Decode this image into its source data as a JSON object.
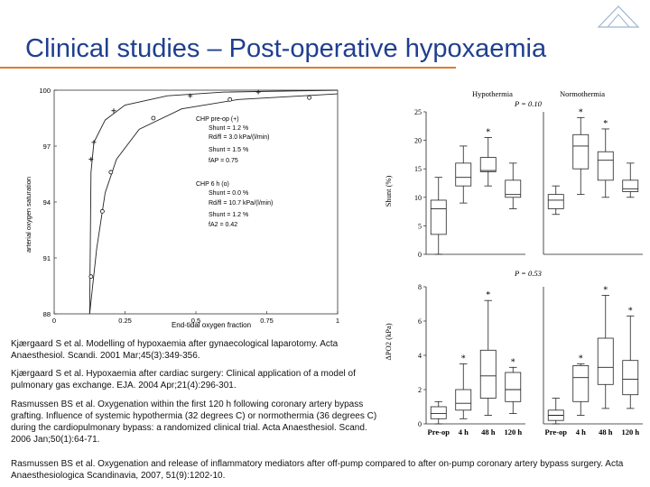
{
  "slide": {
    "title": "Clinical studies – Post-operative hypoxaemia"
  },
  "references": [
    "Kjærgaard S et al. Modelling of hypoxaemia after gynaecological laparotomy. Acta Anaesthesiol. Scandi. 2001 Mar;45(3):349-356.",
    "Kjærgaard S et al. Hypoxaemia after cardiac surgery: Clinical application of a model of pulmonary gas exchange. EJA. 2004 Apr;21(4):296-301.",
    "Rasmussen BS et al. Oxygenation within the first 120 h following coronary artery bypass grafting. Influence of systemic hypothermia (32 degrees C) or normothermia (36 degrees C) during the cardiopulmonary bypass: a randomized clinical trial. Acta Anaesthesiol. Scand. 2006 Jan;50(1):64-71.",
    "Rasmussen BS et al. Oxygenation and release of inflammatory mediators after off-pump compared to after on-pump coronary artery bypass surgery. Acta Anaesthesiologica Scandinavia, 2007, 51(9):1202-10."
  ],
  "chart_data": [
    {
      "type": "line",
      "xlabel": "End-tidal oxygen fraction",
      "ylabel": "arterial oxygen saturation",
      "xlim": [
        0,
        1
      ],
      "ylim": [
        88,
        100
      ],
      "x_ticks": [
        "0",
        "0.25",
        "0.5",
        "0.75",
        "1"
      ],
      "y_ticks": [
        "88",
        "91",
        "94",
        "97",
        "100"
      ],
      "legend": {
        "g1_title": "CHP pre-op (+)",
        "g1_lines": [
          "Shunt = 1.2 %",
          "Rd/fl = 3.0 kPa/(l/min)",
          "Shunt = 1.5 %",
          "fAP = 0.75"
        ],
        "g2_title": "CHP 6 h (o)",
        "g2_lines": [
          "Shunt = 0.0 %",
          "Rd/fl = 10.7 kPa/(l/min)",
          "Shunt = 1.2 %",
          "fA2 = 0.42"
        ]
      },
      "series": [
        {
          "marker": "+",
          "x": [
            0.13,
            0.14,
            0.21,
            0.48,
            0.72
          ],
          "y": [
            96.3,
            97.2,
            98.9,
            99.7,
            99.9
          ]
        },
        {
          "marker": "o",
          "x": [
            0.13,
            0.17,
            0.2,
            0.35,
            0.62,
            0.9
          ],
          "y": [
            90.0,
            93.5,
            95.6,
            98.5,
            99.5,
            99.6
          ]
        }
      ]
    },
    {
      "type": "box",
      "ylabel": "Shunt (%)",
      "p_value": "P = 0.10",
      "groups": [
        "Hypothermia",
        "Normothermia"
      ],
      "ylim": [
        0,
        25
      ],
      "y_ticks": [
        "0",
        "5",
        "10",
        "15",
        "20",
        "25"
      ],
      "boxes": [
        {
          "group": 0,
          "min": 0,
          "q1": 3.5,
          "median": 8,
          "q3": 9.5,
          "max": 13.5,
          "star": false
        },
        {
          "group": 0,
          "min": 9,
          "q1": 12,
          "median": 13.5,
          "q3": 16,
          "max": 19,
          "star": false
        },
        {
          "group": 0,
          "min": 12,
          "q1": 14.5,
          "median": 14.7,
          "q3": 17,
          "max": 20.5,
          "star": true
        },
        {
          "group": 0,
          "min": 8,
          "q1": 10,
          "median": 10.5,
          "q3": 13,
          "max": 16,
          "star": false
        },
        {
          "group": 1,
          "min": 7,
          "q1": 8,
          "median": 9.5,
          "q3": 10.5,
          "max": 12,
          "star": false
        },
        {
          "group": 1,
          "min": 10.5,
          "q1": 15,
          "median": 19,
          "q3": 21,
          "max": 24,
          "star": true
        },
        {
          "group": 1,
          "min": 10,
          "q1": 13,
          "median": 16.5,
          "q3": 18,
          "max": 22,
          "star": true
        },
        {
          "group": 1,
          "min": 10,
          "q1": 11,
          "median": 11.5,
          "q3": 13,
          "max": 16,
          "star": false
        }
      ]
    },
    {
      "type": "box",
      "ylabel": "ΔPO2 (kPa)",
      "p_value": "P = 0.53",
      "categories": [
        "Pre-op",
        "4 h",
        "48 h",
        "120 h",
        "Pre-op",
        "4 h",
        "48 h",
        "120 h"
      ],
      "ylim": [
        0,
        8
      ],
      "y_ticks": [
        "0",
        "2",
        "4",
        "6",
        "8"
      ],
      "boxes": [
        {
          "group": 0,
          "min": 0,
          "q1": 0.3,
          "median": 0.6,
          "q3": 1.0,
          "max": 1.3,
          "star": false
        },
        {
          "group": 0,
          "min": 0.3,
          "q1": 0.8,
          "median": 1.2,
          "q3": 2.0,
          "max": 3.5,
          "star": true
        },
        {
          "group": 0,
          "min": 0.5,
          "q1": 1.5,
          "median": 2.8,
          "q3": 4.3,
          "max": 7.2,
          "star": true
        },
        {
          "group": 0,
          "min": 0.6,
          "q1": 1.3,
          "median": 2.0,
          "q3": 3.0,
          "max": 3.3,
          "star": true
        },
        {
          "group": 1,
          "min": 0,
          "q1": 0.2,
          "median": 0.5,
          "q3": 0.8,
          "max": 1.5,
          "star": false
        },
        {
          "group": 1,
          "min": 0.5,
          "q1": 1.3,
          "median": 2.7,
          "q3": 3.4,
          "max": 3.5,
          "star": true
        },
        {
          "group": 1,
          "min": 0.9,
          "q1": 2.3,
          "median": 3.3,
          "q3": 5.0,
          "max": 7.5,
          "star": true
        },
        {
          "group": 1,
          "min": 0.9,
          "q1": 1.7,
          "median": 2.6,
          "q3": 3.7,
          "max": 6.3,
          "star": true
        }
      ]
    }
  ]
}
